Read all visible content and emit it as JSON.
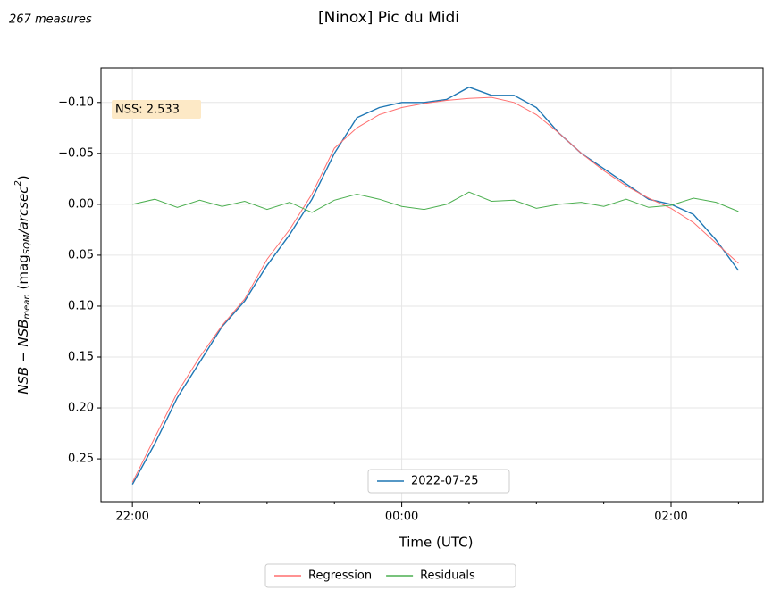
{
  "chart_data": {
    "type": "line",
    "title": "[Ninox] Pic du Midi",
    "subtitle": "267 measures",
    "annotation": "NSS: 2.533",
    "xlabel": "Time (UTC)",
    "ylabel": [
      "NSB − NSB",
      "mean",
      " (mag",
      "SQM",
      "/arcsec",
      "2",
      ")"
    ],
    "x": [
      "22:00",
      "22:10",
      "22:20",
      "22:30",
      "22:40",
      "22:50",
      "23:00",
      "23:10",
      "23:20",
      "23:30",
      "23:40",
      "23:50",
      "00:00",
      "00:10",
      "00:20",
      "00:30",
      "00:40",
      "00:50",
      "01:00",
      "01:10",
      "01:20",
      "01:30",
      "01:40",
      "01:50",
      "02:00",
      "02:10",
      "02:20",
      "02:30"
    ],
    "series": [
      {
        "name": "2022-07-25",
        "color": "#1f77b4",
        "legend": "axes",
        "values": [
          0.275,
          0.235,
          0.19,
          0.155,
          0.12,
          0.095,
          0.06,
          0.03,
          -0.005,
          -0.05,
          -0.085,
          -0.095,
          -0.1,
          -0.1,
          -0.103,
          -0.115,
          -0.107,
          -0.107,
          -0.095,
          -0.07,
          -0.05,
          -0.035,
          -0.02,
          -0.005,
          0.0,
          0.01,
          0.035,
          0.065
        ]
      },
      {
        "name": "Regression",
        "color": "#ff6f6f",
        "legend": "figure",
        "values": [
          0.273,
          0.229,
          0.185,
          0.15,
          0.119,
          0.093,
          0.054,
          0.025,
          -0.01,
          -0.055,
          -0.075,
          -0.088,
          -0.095,
          -0.099,
          -0.102,
          -0.104,
          -0.105,
          -0.1,
          -0.088,
          -0.07,
          -0.05,
          -0.033,
          -0.018,
          -0.006,
          0.004,
          0.018,
          0.038,
          0.058
        ]
      },
      {
        "name": "Residuals",
        "color": "#4caf50",
        "legend": "figure",
        "values": [
          0.0,
          -0.005,
          0.003,
          -0.004,
          0.002,
          -0.003,
          0.005,
          -0.002,
          0.008,
          -0.004,
          -0.01,
          -0.005,
          0.002,
          0.005,
          0.0,
          -0.012,
          -0.003,
          -0.004,
          0.004,
          0.0,
          -0.002,
          0.002,
          -0.005,
          0.003,
          0.001,
          -0.006,
          -0.002,
          0.007
        ]
      }
    ],
    "xlim": [
      "21:46",
      "02:41"
    ],
    "xticks": [
      "22:00",
      "00:00",
      "02:00"
    ],
    "xminorticks": [
      "22:30",
      "23:00",
      "23:30",
      "00:30",
      "01:00",
      "01:30",
      "02:30"
    ],
    "ylim": [
      -0.134,
      0.292
    ],
    "y_inverted": true,
    "yticks": [
      {
        "value": -0.1,
        "label": "−0.10"
      },
      {
        "value": -0.05,
        "label": "−0.05"
      },
      {
        "value": 0,
        "label": "0.00"
      },
      {
        "value": 0.05,
        "label": "0.05"
      },
      {
        "value": 0.1,
        "label": "0.10"
      },
      {
        "value": 0.15,
        "label": "0.15"
      },
      {
        "value": 0.2,
        "label": "0.20"
      },
      {
        "value": 0.25,
        "label": "0.25"
      }
    ],
    "grid": true
  }
}
